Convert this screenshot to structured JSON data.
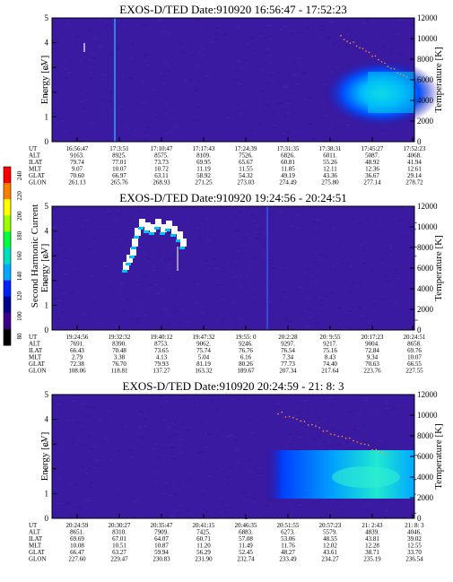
{
  "colorbar": {
    "label": "Second Harmonic Current",
    "ticks": [
      "80",
      "100",
      "120",
      "140",
      "160",
      "180",
      "200",
      "220",
      "240"
    ],
    "colors": [
      "#000000",
      "#3b008a",
      "#00008f",
      "#0020ff",
      "#00a8ff",
      "#00e0c0",
      "#00ff40",
      "#9aff00",
      "#ffff00",
      "#ff8000",
      "#ff0000"
    ]
  },
  "chart_data": [
    {
      "type": "heatmap",
      "title": "EXOS-D/TED   Date:910920   16:56:47 - 17:52:23",
      "ylabel": "Energy [eV]",
      "y2label": "Temperature [K]",
      "ylim": [
        0,
        5
      ],
      "y2lim": [
        0,
        12000
      ],
      "yticks": [
        "0",
        "1",
        "2",
        "3",
        "4",
        "5"
      ],
      "y2ticks": [
        "0",
        "2000",
        "4000",
        "6000",
        "8000",
        "10000",
        "12000"
      ],
      "rows": {
        "UT": [
          "16:56:47",
          "17:3:51",
          "17:10:47",
          "17:17:43",
          "17:24:39",
          "17:31:35",
          "17:38:31",
          "17:45:27",
          "17:52:23"
        ],
        "ALT": [
          "9163.",
          "8925.",
          "8575.",
          "8109.",
          "7526.",
          "6826.",
          "6011.",
          "5087.",
          "4068."
        ],
        "ILAT": [
          "79.74",
          "77.01",
          "73.73",
          "69.95",
          "65.67",
          "60.81",
          "55.26",
          "48.92",
          "41.94"
        ],
        "MLT": [
          "9.07",
          "10.07",
          "10.72",
          "11.19",
          "11.55",
          "11.85",
          "12.11",
          "12.36",
          "12.61"
        ],
        "GLAT": [
          "70.60",
          "66.97",
          "63.11",
          "58.92",
          "54.32",
          "49.19",
          "43.36",
          "36.67",
          "29.14"
        ],
        "GLON": [
          "261.13",
          "265.76",
          "268.93",
          "271.25",
          "273.03",
          "274.49",
          "275.80",
          "277.14",
          "278.72"
        ]
      }
    },
    {
      "type": "heatmap",
      "title": "EXOS-D/TED   Date:910920   19:24:56 - 20:24:51",
      "ylabel": "Energy [eV]",
      "y2label": "Temperature [K]",
      "ylim": [
        0,
        5
      ],
      "y2lim": [
        0,
        12000
      ],
      "yticks": [
        "0",
        "1",
        "2",
        "3",
        "4",
        "5"
      ],
      "y2ticks": [
        "0",
        "2000",
        "4000",
        "6000",
        "8000",
        "10000",
        "12000"
      ],
      "rows": {
        "UT": [
          "19:24:56",
          "19:32:32",
          "19:40:12",
          "19:47:32",
          "19:55: 0",
          "20:2:28",
          "20: 9:55",
          "20:17:23",
          "20:24:51"
        ],
        "ALT": [
          "7691.",
          "8390.",
          "8753.",
          "9062.",
          "9246.",
          "9297.",
          "9217.",
          "9004.",
          "8658."
        ],
        "ILAT": [
          "66.43",
          "70.48",
          "73.65",
          "75.74",
          "76.76",
          "76.54",
          "75.16",
          "72.84",
          "69.76"
        ],
        "MLT": [
          "2.79",
          "3.38",
          "4.13",
          "5.04",
          "6.16",
          "7.34",
          "8.43",
          "9.34",
          "10.07"
        ],
        "GLAT": [
          "72.38",
          "76.70",
          "79.93",
          "81.19",
          "80.26",
          "77.73",
          "74.40",
          "70.63",
          "66.55"
        ],
        "GLON": [
          "108.06",
          "118.81",
          "137.27",
          "163.32",
          "189.67",
          "207.34",
          "217.64",
          "223.76",
          "227.55"
        ]
      }
    },
    {
      "type": "heatmap",
      "title": "EXOS-D/TED   Date:910920   20:24:59 - 21: 8: 3",
      "ylabel": "Energy [eV]",
      "y2label": "Temperature [K]",
      "ylim": [
        0,
        5
      ],
      "y2lim": [
        0,
        12000
      ],
      "yticks": [
        "0",
        "1",
        "2",
        "3",
        "4",
        "5"
      ],
      "y2ticks": [
        "0",
        "2000",
        "4000",
        "6000",
        "8000",
        "10000",
        "12000"
      ],
      "rows": {
        "UT": [
          "20:24:59",
          "20:30:27",
          "20:35:47",
          "20:41:15",
          "20:46:35",
          "20:51:55",
          "20:57:23",
          "21: 2:43",
          "21: 8: 3"
        ],
        "ALT": [
          "8651.",
          "8310.",
          "7909.",
          "7425.",
          "6883.",
          "6273.",
          "5579.",
          "4839.",
          "4046."
        ],
        "ILAT": [
          "69.69",
          "67.01",
          "64.07",
          "60.71",
          "57.08",
          "53.06",
          "48.55",
          "43.81",
          "39.02"
        ],
        "MLT": [
          "10.08",
          "10.51",
          "10.87",
          "11.20",
          "11.49",
          "11.76",
          "12.02",
          "12.28",
          "12.55"
        ],
        "GLAT": [
          "66.47",
          "63.27",
          "59.94",
          "56.29",
          "52.45",
          "48.27",
          "43.61",
          "38.71",
          "33.70"
        ],
        "GLON": [
          "227.60",
          "229.47",
          "230.83",
          "231.90",
          "232.74",
          "233.49",
          "234.27",
          "235.19",
          "236.54"
        ]
      }
    }
  ]
}
